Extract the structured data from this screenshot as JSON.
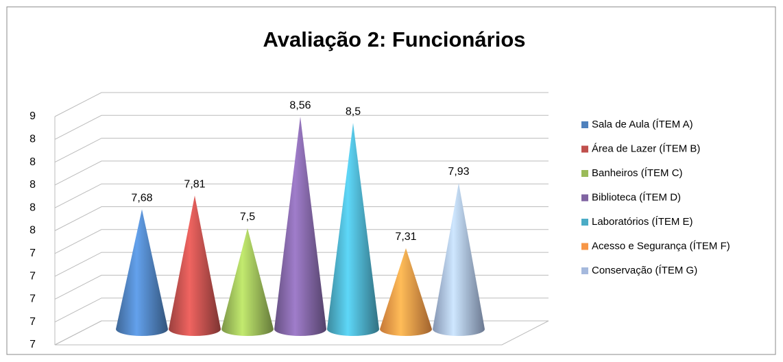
{
  "chart_data": {
    "type": "cone",
    "title": "Avaliação 2: Funcionários",
    "ylim": [
      6.6,
      8.6
    ],
    "yticks": [
      {
        "value": 6.6,
        "label": "7"
      },
      {
        "value": 6.8,
        "label": "7"
      },
      {
        "value": 7.0,
        "label": "7"
      },
      {
        "value": 7.2,
        "label": "7"
      },
      {
        "value": 7.4,
        "label": "7"
      },
      {
        "value": 7.6,
        "label": "8"
      },
      {
        "value": 7.8,
        "label": "8"
      },
      {
        "value": 8.0,
        "label": "8"
      },
      {
        "value": 8.2,
        "label": "8"
      },
      {
        "value": 8.4,
        "label": "8"
      },
      {
        "value": 8.6,
        "label": "9"
      }
    ],
    "grid": true,
    "legend": "right",
    "series": [
      {
        "name": "Sala de Aula (ÍTEM A)",
        "color": "#4f81bd",
        "values": [
          7.68
        ],
        "value_labels": [
          "7,68"
        ]
      },
      {
        "name": "Área de Lazer (ÍTEM B)",
        "color": "#c0504d",
        "values": [
          7.81
        ],
        "value_labels": [
          "7,81"
        ]
      },
      {
        "name": "Banheiros (ÍTEM C)",
        "color": "#9bbb59",
        "values": [
          7.5
        ],
        "value_labels": [
          "7,5"
        ]
      },
      {
        "name": "Biblioteca (ÍTEM D)",
        "color": "#8064a2",
        "values": [
          8.56
        ],
        "value_labels": [
          "8,56"
        ]
      },
      {
        "name": "Laboratórios (ÍTEM E)",
        "color": "#4bacc6",
        "values": [
          8.5
        ],
        "value_labels": [
          "8,5"
        ]
      },
      {
        "name": "Acesso e Segurança (ÍTEM F)",
        "color": "#f79646",
        "values": [
          7.31
        ],
        "value_labels": [
          "7,31"
        ]
      },
      {
        "name": "Conservação (ÍTEM G)",
        "color": "#a5b9dd",
        "values": [
          7.93
        ],
        "value_labels": [
          "7,93"
        ]
      }
    ]
  }
}
